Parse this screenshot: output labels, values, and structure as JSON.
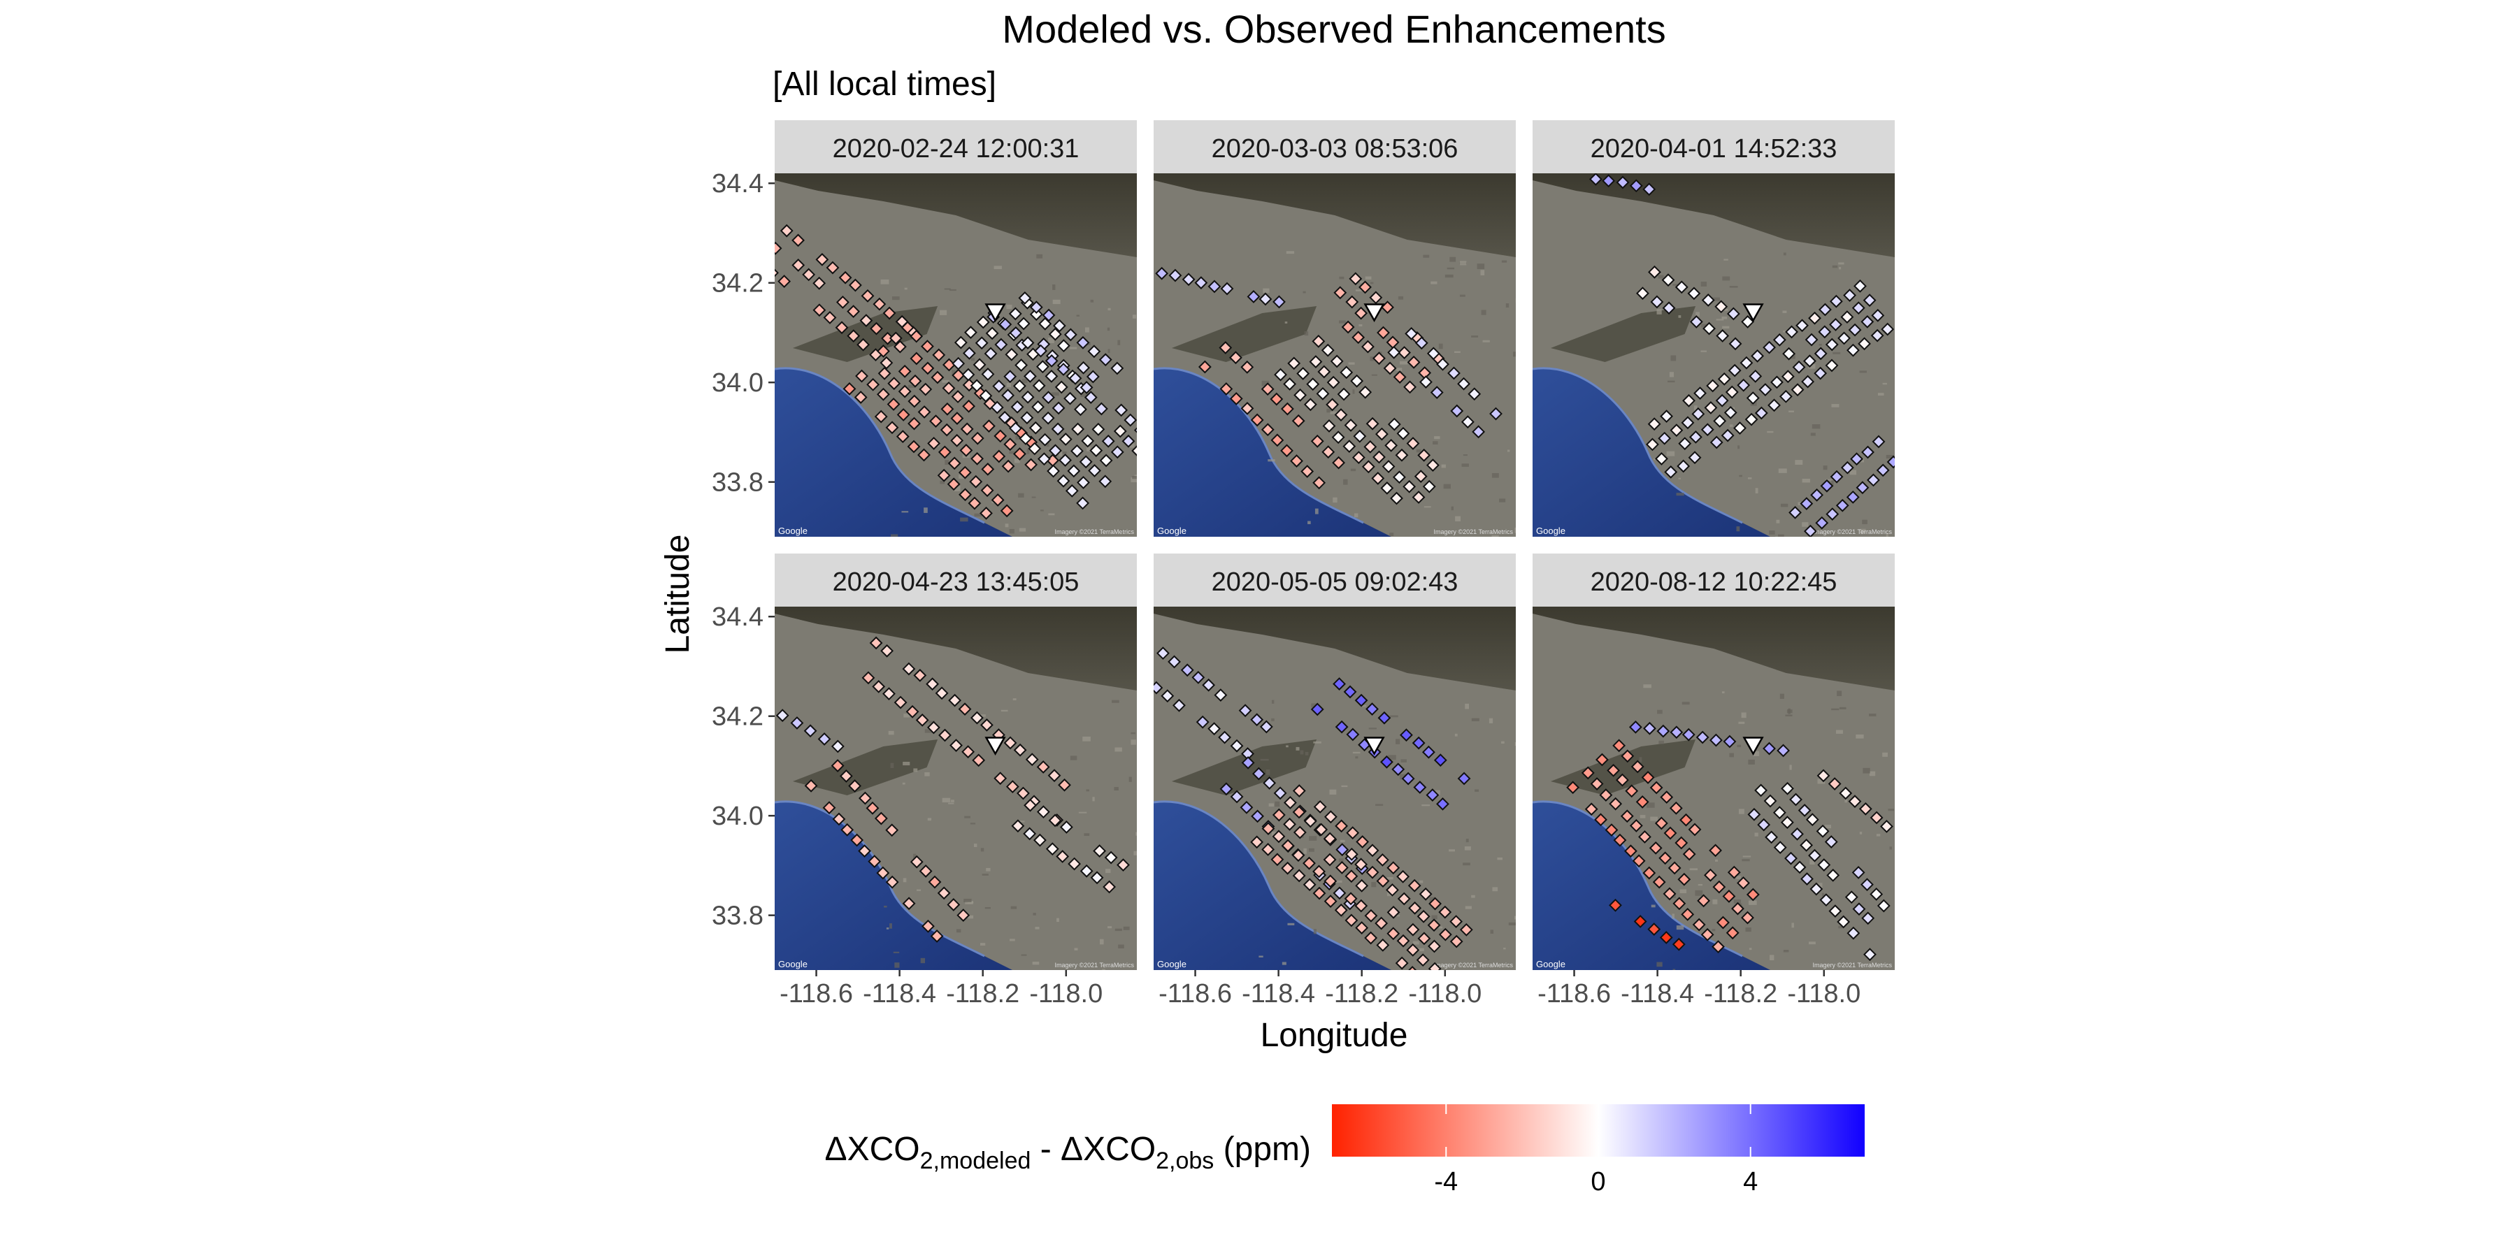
{
  "chart_data": {
    "type": "scatter",
    "title": "Modeled vs. Observed Enhancements",
    "subtitle": "[All local times]",
    "xlabel": "Longitude",
    "ylabel": "Latitude",
    "xlim": [
      -118.7,
      -117.83
    ],
    "ylim": [
      33.69,
      34.42
    ],
    "x_ticks": [
      -118.6,
      -118.4,
      -118.2,
      -118.0
    ],
    "x_tick_labels": [
      "-118.6",
      "-118.4",
      "-118.2",
      "-118.0"
    ],
    "y_ticks": [
      33.8,
      34.0,
      34.2,
      34.4
    ],
    "y_tick_labels": [
      "33.8",
      "34.0",
      "34.2",
      "34.4"
    ],
    "basemap_attribution": [
      "Google",
      "Imagery ©2021 TerraMetrics"
    ],
    "site_marker": {
      "lon": -118.17,
      "lat": 34.14
    },
    "colorbar": {
      "label_main": "ΔXCO",
      "label_sub1": "2,modeled",
      "label_mid": " - ΔXCO",
      "label_sub2": "2,obs",
      "label_unit": " (ppm)",
      "range": [
        -7,
        7
      ],
      "ticks": [
        -4,
        0,
        4
      ],
      "tick_labels": [
        "-4",
        "0",
        "4"
      ],
      "low_color": "#ff2200",
      "mid_color": "#ffffff",
      "high_color": "#1100ff"
    },
    "facets": [
      {
        "label": "2020-02-24 12:00:31",
        "swaths": [
          {
            "lon": [
              -118.7,
              -118.4
            ],
            "lat": [
              34.27,
              34.07
            ],
            "width": 0.1,
            "value": -2.0
          },
          {
            "lon": [
              -118.45,
              -118.1
            ],
            "lat": [
              34.05,
              33.78
            ],
            "width": 0.2,
            "value": -2.5
          },
          {
            "lon": [
              -118.2,
              -117.88
            ],
            "lat": [
              34.12,
              33.82
            ],
            "width": 0.22,
            "value": 0.4
          },
          {
            "lon": [
              -118.15,
              -117.9
            ],
            "lat": [
              34.16,
              34.0
            ],
            "width": 0.08,
            "value": 1.2
          }
        ]
      },
      {
        "label": "2020-03-03 08:53:06",
        "swaths": [
          {
            "lon": [
              -118.68,
              -118.4
            ],
            "lat": [
              34.22,
              34.16
            ],
            "width": 0.05,
            "value": 1.5
          },
          {
            "lon": [
              -118.25,
              -118.05
            ],
            "lat": [
              34.18,
              34.02
            ],
            "width": 0.1,
            "value": -2.0
          },
          {
            "lon": [
              -118.55,
              -118.28
            ],
            "lat": [
              34.05,
              33.82
            ],
            "width": 0.07,
            "value": -2.5
          },
          {
            "lon": [
              -118.35,
              -118.05
            ],
            "lat": [
              34.05,
              33.78
            ],
            "width": 0.12,
            "value": -0.5
          },
          {
            "lon": [
              -118.1,
              -117.9
            ],
            "lat": [
              34.08,
              33.92
            ],
            "width": 0.06,
            "value": 1.0
          }
        ]
      },
      {
        "label": "2020-04-01 14:52:33",
        "swaths": [
          {
            "lon": [
              -118.55,
              -118.42
            ],
            "lat": [
              34.41,
              34.39
            ],
            "width": 0.03,
            "value": 2.0
          },
          {
            "lon": [
              -118.42,
              -118.2
            ],
            "lat": [
              34.2,
              34.1
            ],
            "width": 0.06,
            "value": 0.2
          },
          {
            "lon": [
              -118.4,
              -117.88
            ],
            "lat": [
              33.86,
              34.15
            ],
            "width": 0.12,
            "value": 0.3
          },
          {
            "lon": [
              -118.05,
              -117.85
            ],
            "lat": [
              33.72,
              33.86
            ],
            "width": 0.06,
            "value": 2.0
          }
        ]
      },
      {
        "label": "2020-04-23 13:45:05",
        "swaths": [
          {
            "lon": [
              -118.68,
              -118.55
            ],
            "lat": [
              34.2,
              34.14
            ],
            "width": 0.05,
            "value": 0.8
          },
          {
            "lon": [
              -118.48,
              -118.0
            ],
            "lat": [
              34.32,
              34.02
            ],
            "width": 0.08,
            "value": -1.5
          },
          {
            "lon": [
              -118.58,
              -118.28
            ],
            "lat": [
              34.08,
              33.78
            ],
            "width": 0.08,
            "value": -2.2
          },
          {
            "lon": [
              -118.1,
              -117.88
            ],
            "lat": [
              34.0,
              33.88
            ],
            "width": 0.06,
            "value": -0.5
          }
        ]
      },
      {
        "label": "2020-05-05 09:02:43",
        "swaths": [
          {
            "lon": [
              -118.7,
              -118.45
            ],
            "lat": [
              34.3,
              34.15
            ],
            "width": 0.08,
            "value": 1.0
          },
          {
            "lon": [
              -118.28,
              -117.98
            ],
            "lat": [
              34.24,
              34.05
            ],
            "width": 0.08,
            "value": 4.0
          },
          {
            "lon": [
              -118.5,
              -118.2
            ],
            "lat": [
              34.08,
              33.85
            ],
            "width": 0.08,
            "value": 1.8
          },
          {
            "lon": [
              -118.4,
              -118.0
            ],
            "lat": [
              34.0,
              33.72
            ],
            "width": 0.16,
            "value": -1.8
          }
        ]
      },
      {
        "label": "2020-08-12 10:22:45",
        "swaths": [
          {
            "lon": [
              -118.45,
              -118.1
            ],
            "lat": [
              34.18,
              34.13
            ],
            "width": 0.05,
            "value": 2.5
          },
          {
            "lon": [
              -118.55,
              -118.2
            ],
            "lat": [
              34.1,
              33.78
            ],
            "width": 0.15,
            "value": -3.0
          },
          {
            "lon": [
              -118.5,
              -118.35
            ],
            "lat": [
              33.82,
              33.74
            ],
            "width": 0.05,
            "value": -6.0
          },
          {
            "lon": [
              -118.15,
              -117.85
            ],
            "lat": [
              34.05,
              33.75
            ],
            "width": 0.1,
            "value": 0.5
          },
          {
            "lon": [
              -118.0,
              -117.85
            ],
            "lat": [
              34.08,
              33.98
            ],
            "width": 0.05,
            "value": -1.0
          }
        ]
      }
    ]
  }
}
